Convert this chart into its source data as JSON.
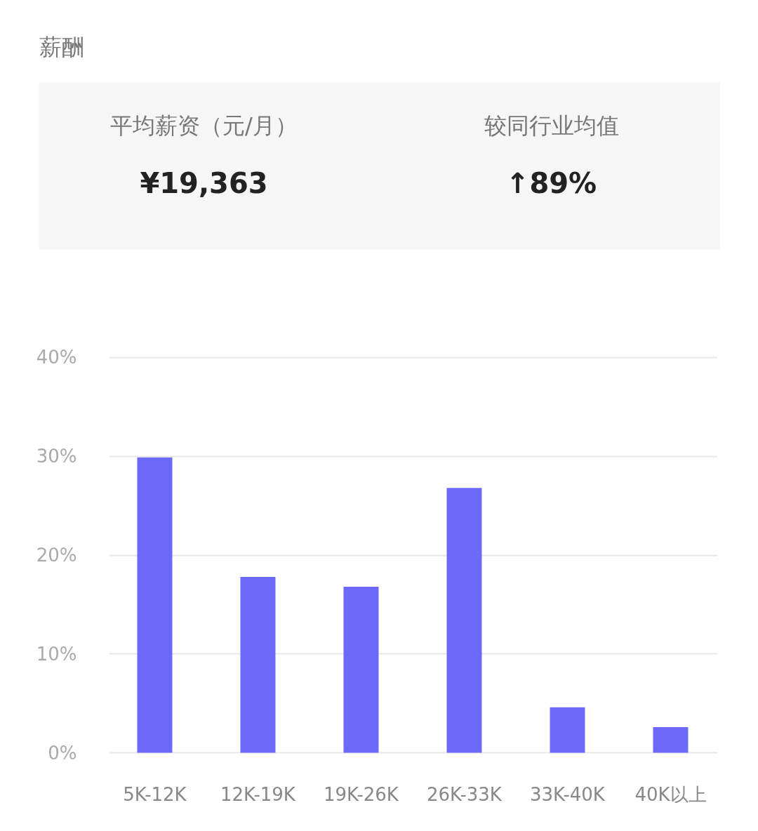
{
  "chart_data": [
    {
      "type": "other",
      "title": "薪酬",
      "annotations": [
        "平均薪资（元/月）",
        "¥19,363",
        "较同行业均值",
        "↑89%"
      ]
    },
    {
      "type": "bar",
      "categories": [
        "5K-12K",
        "12K-19K",
        "19K-26K",
        "26K-33K",
        "33K-40K",
        "40K以上"
      ],
      "values": [
        29.9,
        17.8,
        16.8,
        26.8,
        4.6,
        2.6
      ],
      "color": "#6c68fa",
      "ylim": [
        0,
        40
      ],
      "yticks": [
        {
          "value": 0,
          "label": "0%"
        },
        {
          "value": 10,
          "label": "10%"
        },
        {
          "value": 20,
          "label": "20%"
        },
        {
          "value": 30,
          "label": "30%"
        },
        {
          "value": 40,
          "label": "40%"
        }
      ],
      "grid": "y"
    }
  ]
}
